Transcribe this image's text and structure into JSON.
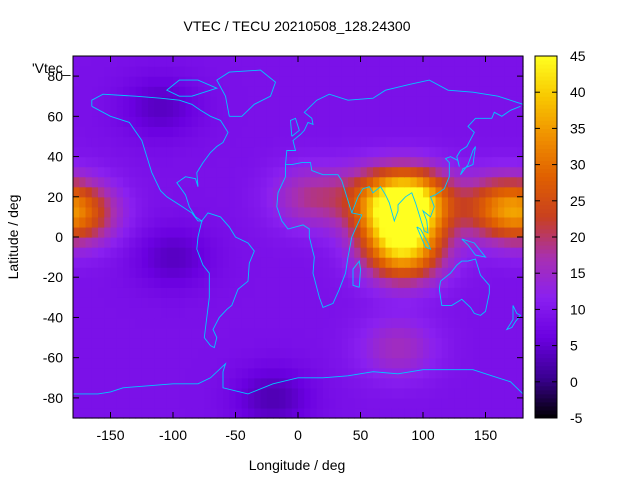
{
  "chart_data": {
    "type": "heatmap",
    "title": "VTEC / TECU 20210508_128.24300",
    "xlabel": "Longitude / deg",
    "ylabel": "Latitude / deg",
    "series_label": "'Vtec_",
    "xlim": [
      -180,
      180
    ],
    "ylim": [
      -90,
      90
    ],
    "x_ticks": [
      -150,
      -100,
      -50,
      0,
      50,
      100,
      150
    ],
    "y_ticks": [
      -80,
      -60,
      -40,
      -20,
      0,
      20,
      40,
      60,
      80
    ],
    "colorbar": {
      "range": [
        -5,
        45
      ],
      "ticks": [
        -5,
        0,
        5,
        10,
        15,
        20,
        25,
        30,
        35,
        40,
        45
      ],
      "palette": [
        "#000000",
        "#3a0090",
        "#6a00e0",
        "#8a20f0",
        "#a830b0",
        "#c84020",
        "#e06000",
        "#f09000",
        "#f8c800",
        "#ffff20"
      ]
    },
    "field": {
      "background_tecu": 9,
      "features": [
        {
          "lon": 90,
          "lat": 18,
          "peak_tecu": 42
        },
        {
          "lon": 80,
          "lat": 5,
          "peak_tecu": 28
        },
        {
          "lon": 85,
          "lat": -8,
          "peak_tecu": 30
        },
        {
          "lon": 160,
          "lat": 15,
          "peak_tecu": 25
        },
        {
          "lon": -175,
          "lat": 12,
          "peak_tecu": 25
        },
        {
          "lon": 60,
          "lat": 20,
          "peak_tecu": 20
        },
        {
          "lon": 10,
          "lat": 20,
          "peak_tecu": 18
        },
        {
          "lon": -100,
          "lat": -10,
          "peak_tecu": 4
        },
        {
          "lon": -110,
          "lat": 65,
          "peak_tecu": 4
        },
        {
          "lon": -20,
          "lat": -80,
          "peak_tecu": 3
        },
        {
          "lon": 80,
          "lat": -55,
          "peak_tecu": 16
        }
      ]
    },
    "coastline_color": "#00c8ff"
  }
}
